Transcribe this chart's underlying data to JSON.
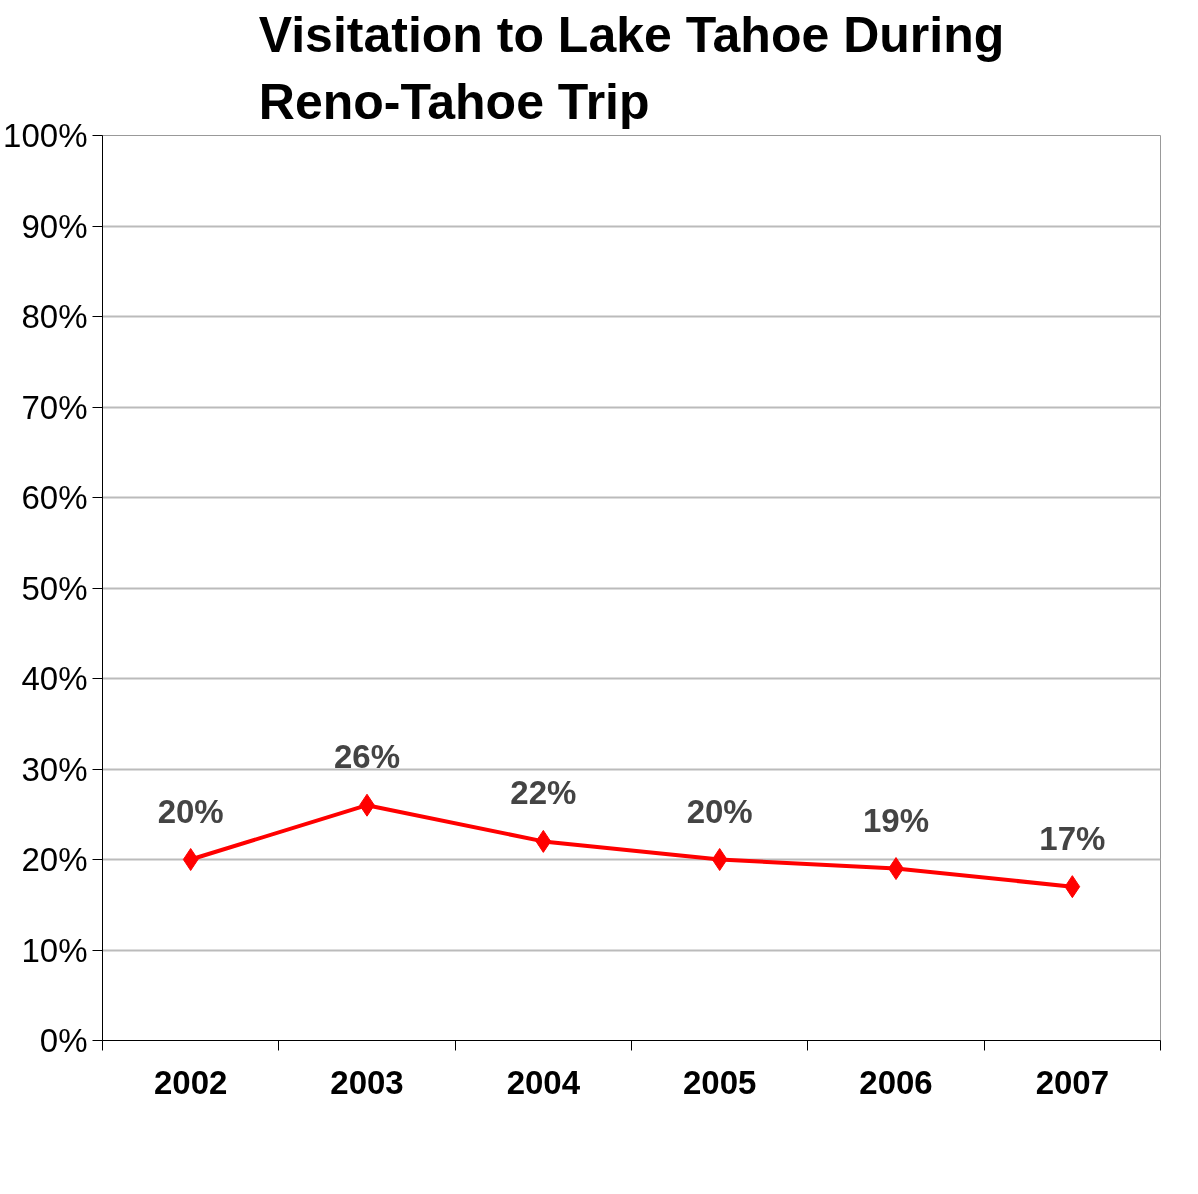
{
  "chart_data": {
    "type": "line",
    "title": "Visitation to Lake Tahoe During Reno-Tahoe Trip",
    "categories": [
      "2002",
      "2003",
      "2004",
      "2005",
      "2006",
      "2007"
    ],
    "series": [
      {
        "color": "#ff0000",
        "values": [
          20,
          26,
          22,
          20,
          19,
          17
        ],
        "value_labels": [
          "20%",
          "26%",
          "22%",
          "20%",
          "19%",
          "17%"
        ]
      }
    ],
    "ylim": [
      0,
      100
    ],
    "yticks": [
      {
        "value": 0,
        "label": "0%"
      },
      {
        "value": 10,
        "label": "10%"
      },
      {
        "value": 20,
        "label": "20%"
      },
      {
        "value": 30,
        "label": "30%"
      },
      {
        "value": 40,
        "label": "40%"
      },
      {
        "value": 50,
        "label": "50%"
      },
      {
        "value": 60,
        "label": "60%"
      },
      {
        "value": 70,
        "label": "70%"
      },
      {
        "value": 80,
        "label": "80%"
      },
      {
        "value": 90,
        "label": "90%"
      },
      {
        "value": 100,
        "label": "100%"
      }
    ],
    "grid": "y",
    "marker": "diamond",
    "line_style": "solid"
  }
}
